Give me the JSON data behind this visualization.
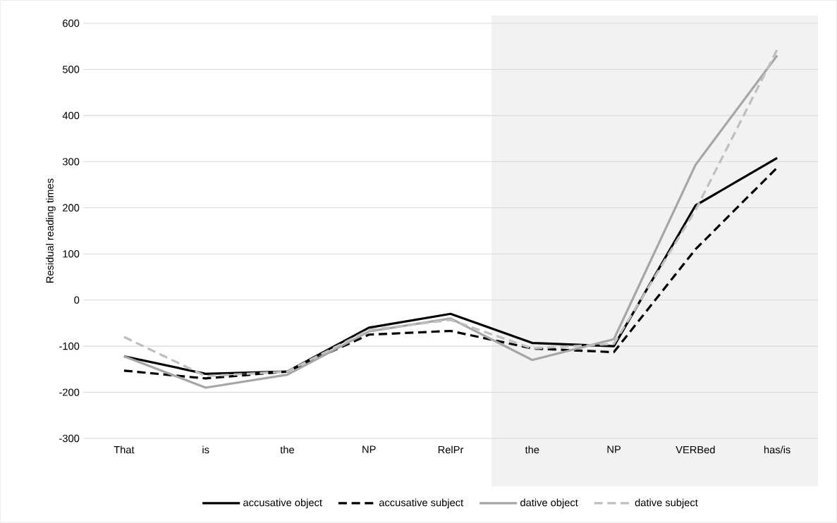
{
  "chart_data": {
    "type": "line",
    "ylabel": "Residual reading times",
    "categories": [
      "That",
      "is",
      "the",
      "NP",
      "RelPr",
      "the",
      "NP",
      "VERBed",
      "has/is"
    ],
    "series": [
      {
        "name": "accusative object",
        "color": "#000000",
        "line_style": "solid",
        "values": [
          -122,
          -160,
          -155,
          -60,
          -30,
          -93,
          -100,
          205,
          308
        ]
      },
      {
        "name": "accusative subject",
        "color": "#000000",
        "line_style": "dashed",
        "values": [
          -153,
          -170,
          -155,
          -75,
          -67,
          -105,
          -113,
          110,
          287
        ]
      },
      {
        "name": "dative object",
        "color": "#a6a6a6",
        "line_style": "solid",
        "values": [
          -122,
          -190,
          -162,
          -68,
          -40,
          -130,
          -85,
          293,
          530
        ]
      },
      {
        "name": "dative subject",
        "color": "#bfbfbf",
        "line_style": "dashed",
        "values": [
          -80,
          -165,
          -155,
          -65,
          -43,
          -105,
          -95,
          195,
          543
        ]
      }
    ],
    "ylim": [
      -300,
      600
    ],
    "yticks": [
      -300,
      -200,
      -100,
      0,
      100,
      200,
      300,
      400,
      500,
      600
    ],
    "grid": "y",
    "legend": "bottom"
  }
}
